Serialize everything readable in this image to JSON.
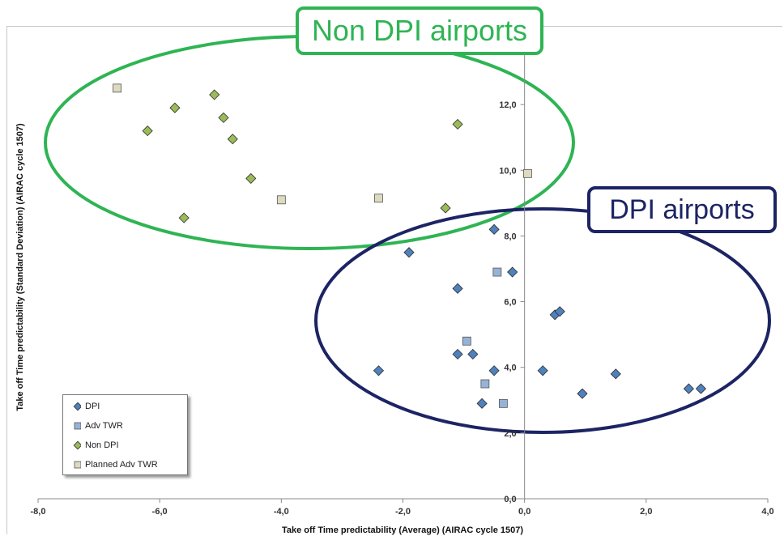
{
  "callouts": {
    "non_dpi": "Non DPI airports",
    "dpi": "DPI airports"
  },
  "chart_data": {
    "type": "scatter",
    "xlabel": "Take off Time predictability (Average) (AIRAC cycle 1507)",
    "ylabel": "Take off Time predictability (Standard Deviation) (AIRAC cycle 1507)",
    "xlim": [
      -8,
      4
    ],
    "ylim": [
      0,
      14
    ],
    "x_ticks": [
      "-8,0",
      "-6,0",
      "-4,0",
      "-2,0",
      "0,0",
      "2,0",
      "4,0"
    ],
    "y_ticks": [
      "0,0",
      "2,0",
      "4,0",
      "6,0",
      "8,0",
      "10,0",
      "12,0"
    ],
    "grid": false,
    "legend_position": "bottom-left",
    "series": [
      {
        "name": "DPI",
        "marker": "diamond",
        "color": "#4f81bd",
        "points": [
          [
            -2.4,
            3.9
          ],
          [
            -1.9,
            7.5
          ],
          [
            -1.1,
            6.4
          ],
          [
            -1.1,
            4.4
          ],
          [
            -0.85,
            4.4
          ],
          [
            -0.5,
            8.2
          ],
          [
            -0.5,
            3.9
          ],
          [
            -0.7,
            2.9
          ],
          [
            -0.2,
            6.9
          ],
          [
            0.3,
            3.9
          ],
          [
            0.5,
            5.6
          ],
          [
            0.58,
            5.7
          ],
          [
            0.95,
            3.2
          ],
          [
            1.5,
            3.8
          ],
          [
            2.7,
            3.35
          ],
          [
            2.9,
            3.35
          ]
        ]
      },
      {
        "name": "Adv TWR",
        "marker": "square",
        "color": "#95b3d7",
        "points": [
          [
            -0.95,
            4.8
          ],
          [
            -0.45,
            6.9
          ],
          [
            -0.65,
            3.5
          ],
          [
            -0.35,
            2.9
          ]
        ]
      },
      {
        "name": "Non DPI",
        "marker": "diamond",
        "color": "#9bbb59",
        "points": [
          [
            -6.2,
            11.2
          ],
          [
            -5.75,
            11.9
          ],
          [
            -5.6,
            8.55
          ],
          [
            -5.1,
            12.3
          ],
          [
            -4.95,
            11.6
          ],
          [
            -4.8,
            10.95
          ],
          [
            -4.5,
            9.75
          ],
          [
            -1.3,
            8.85
          ],
          [
            -1.1,
            11.4
          ]
        ]
      },
      {
        "name": "Planned Adv TWR",
        "marker": "square",
        "color": "#dddabf",
        "points": [
          [
            -6.7,
            12.5
          ],
          [
            -4.0,
            9.1
          ],
          [
            -2.4,
            9.15
          ],
          [
            0.05,
            9.9
          ]
        ]
      }
    ]
  }
}
